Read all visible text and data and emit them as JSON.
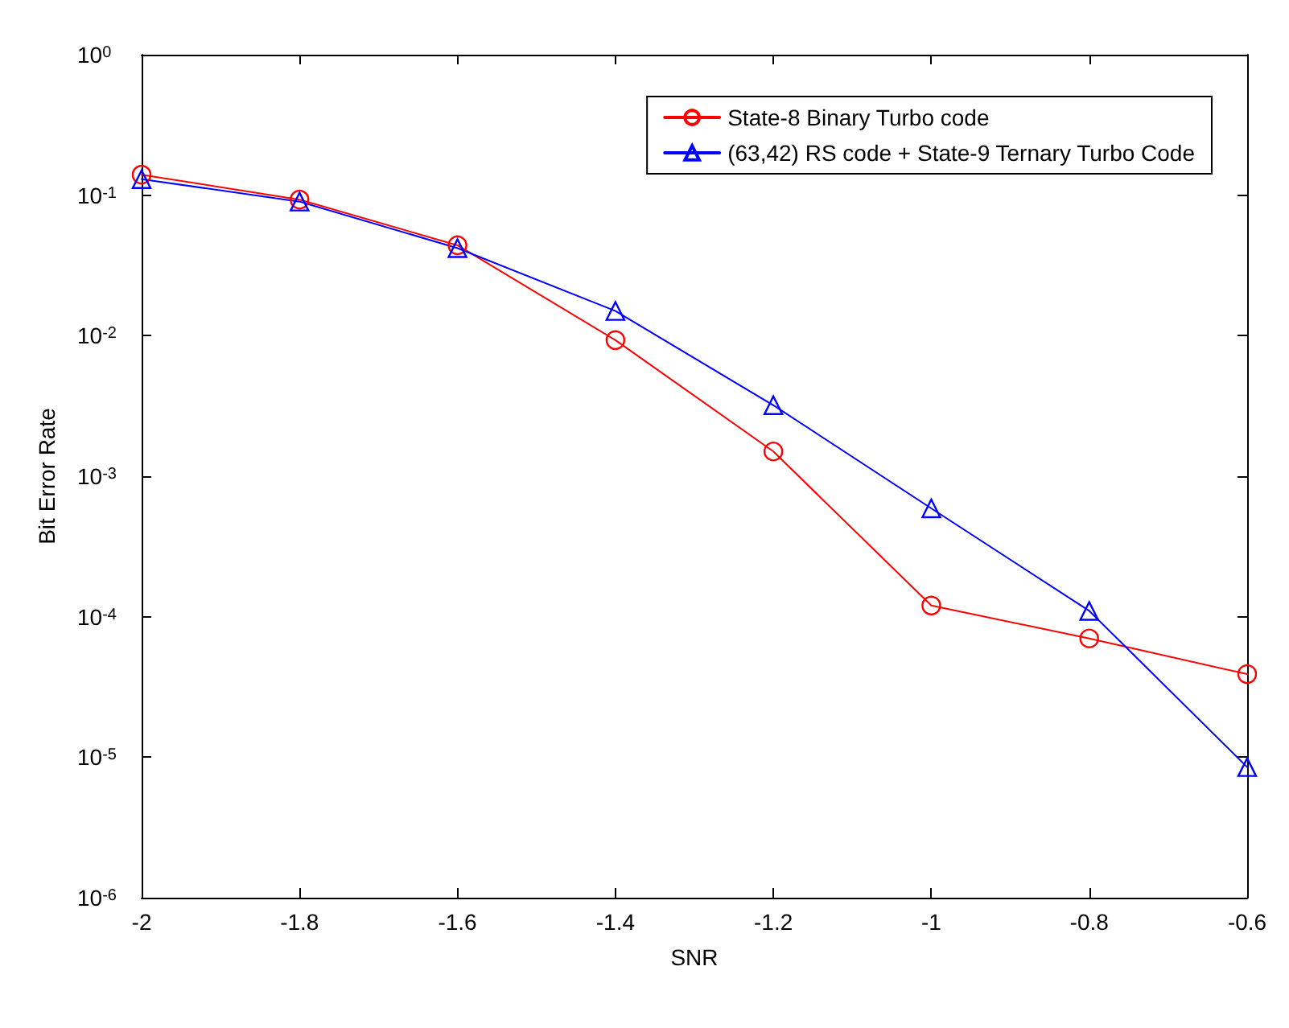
{
  "chart_data": {
    "type": "line",
    "xlabel": "SNR",
    "ylabel": "Bit Error Rate",
    "x": [
      -2,
      -1.8,
      -1.6,
      -1.4,
      -1.2,
      -1,
      -0.8,
      -0.6
    ],
    "series": [
      {
        "name": "State-8 Binary Turbo code",
        "color": "#ff0000",
        "marker": "circle",
        "values": [
          0.14,
          0.093,
          0.044,
          0.0093,
          0.0015,
          0.00012,
          7e-05,
          3.9e-05
        ]
      },
      {
        "name": "(63,42) RS code + State-9 Ternary Turbo Code",
        "color": "#0000ff",
        "marker": "triangle",
        "values": [
          0.13,
          0.09,
          0.042,
          0.015,
          0.0032,
          0.00059,
          0.00011,
          8.5e-06
        ]
      }
    ],
    "xlim": [
      -2,
      -0.6
    ],
    "xticks": [
      -2,
      -1.8,
      -1.6,
      -1.4,
      -1.2,
      -1,
      -0.8,
      -0.6
    ],
    "ylim": [
      1e-06,
      1
    ],
    "yticks": [
      {
        "value": 1e-06,
        "label": "10$^{-6}$"
      },
      {
        "value": 1e-05,
        "label": "10$^{-5}$"
      },
      {
        "value": 0.0001,
        "label": "10$^{-4}$"
      },
      {
        "value": 0.001,
        "label": "10$^{-3}$"
      },
      {
        "value": 0.01,
        "label": "10$^{-2}$"
      },
      {
        "value": 0.1,
        "label": "10$^{-1}$"
      },
      {
        "value": 1,
        "label": "10$^{0}$"
      }
    ],
    "log": "y",
    "grid": false,
    "legend": "top right",
    "line_style": "solid"
  }
}
